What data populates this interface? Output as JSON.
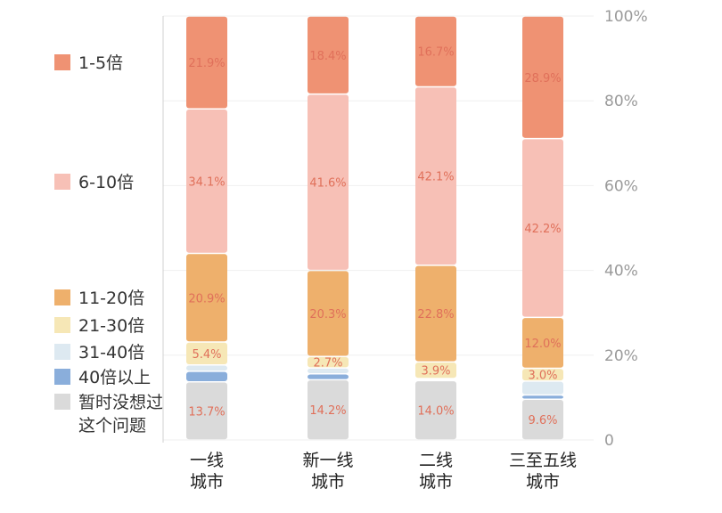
{
  "chart_data": {
    "type": "bar",
    "stacked": true,
    "categories": [
      "一线\n城市",
      "新一线\n城市",
      "二线\n城市",
      "三至五线\n城市"
    ],
    "series": [
      {
        "name": "暂时没想过\n这个问题",
        "color": "#dadada",
        "values": [
          13.7,
          14.2,
          14.0,
          9.6
        ],
        "labels": [
          "13.7%",
          "14.2%",
          "14.0%",
          "9.6%"
        ]
      },
      {
        "name": "40倍以上",
        "color": "#8aaedb",
        "values": [
          2.5,
          1.4,
          0.3,
          1.0
        ],
        "labels": [
          "",
          "",
          "",
          ""
        ]
      },
      {
        "name": "31-40倍",
        "color": "#dde9f1",
        "values": [
          1.5,
          1.4,
          0.2,
          3.3
        ],
        "labels": [
          "",
          "",
          "",
          ""
        ]
      },
      {
        "name": "21-30倍",
        "color": "#f6e7b6",
        "values": [
          5.4,
          2.7,
          3.9,
          3.0
        ],
        "labels": [
          "5.4%",
          "2.7%",
          "3.9%",
          "3.0%"
        ]
      },
      {
        "name": "11-20倍",
        "color": "#eeb06c",
        "values": [
          20.9,
          20.3,
          22.8,
          12.0
        ],
        "labels": [
          "20.9%",
          "20.3%",
          "22.8%",
          "12.0%"
        ]
      },
      {
        "name": "6-10倍",
        "color": "#f7c0b6",
        "values": [
          34.1,
          41.6,
          42.1,
          42.2
        ],
        "labels": [
          "34.1%",
          "41.6%",
          "42.1%",
          "42.2%"
        ]
      },
      {
        "name": "1-5倍",
        "color": "#ef9273",
        "values": [
          21.9,
          18.4,
          16.7,
          28.9
        ],
        "labels": [
          "21.9%",
          "18.4%",
          "16.7%",
          "28.9%"
        ]
      }
    ],
    "legend": [
      "1-5倍",
      "6-10倍",
      "11-20倍",
      "21-30倍",
      "31-40倍",
      "40倍以上",
      "暂时没想过\n这个问题"
    ],
    "yticks": [
      "0",
      "20%",
      "40%",
      "60%",
      "80%",
      "100%"
    ],
    "ylim": [
      0,
      100
    ],
    "grid": true,
    "legend_position": "left"
  }
}
